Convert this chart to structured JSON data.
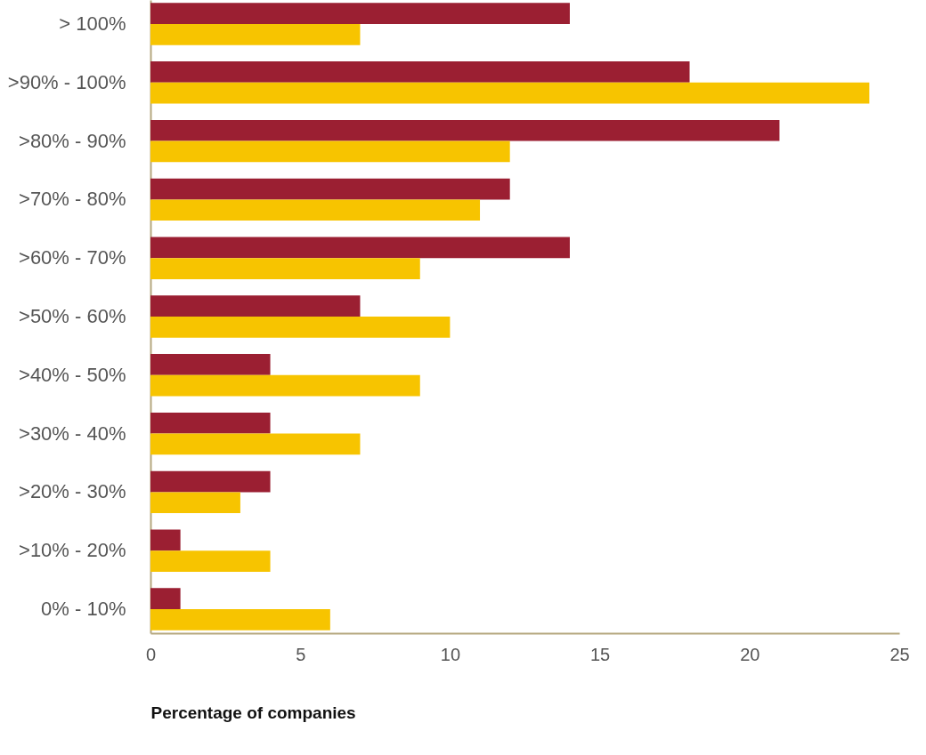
{
  "chart_data": {
    "type": "bar",
    "orientation": "horizontal",
    "xlabel": "Percentage of companies",
    "categories": [
      "> 100%",
      ">90% - 100%",
      ">80% - 90%",
      ">70% - 80%",
      ">60% - 70%",
      ">50% - 60%",
      ">40% - 50%",
      ">30% - 40%",
      ">20% - 30%",
      ">10% - 20%",
      "0% - 10%"
    ],
    "series": [
      {
        "color": "#9b1f32",
        "values": [
          14,
          18,
          21,
          12,
          14,
          7,
          4,
          4,
          4,
          1,
          1
        ]
      },
      {
        "color": "#f7c400",
        "values": [
          7,
          24,
          12,
          11,
          9,
          10,
          9,
          7,
          3,
          4,
          6
        ]
      }
    ],
    "xlim": [
      0,
      25
    ],
    "xticks": [
      0,
      5,
      10,
      15,
      20,
      25
    ],
    "grid": false
  }
}
